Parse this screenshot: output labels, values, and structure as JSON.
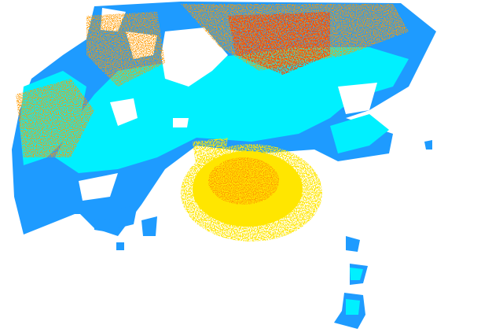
{
  "image": {
    "kind": "weather radar reflectivity sweep",
    "background": "#ffffff",
    "colors": {
      "light_blue": "#1e9bff",
      "cyan": "#00f0ff",
      "yellow": "#ffe600",
      "orange": "#ff9a00",
      "red_orange": "#ff4a00"
    }
  }
}
